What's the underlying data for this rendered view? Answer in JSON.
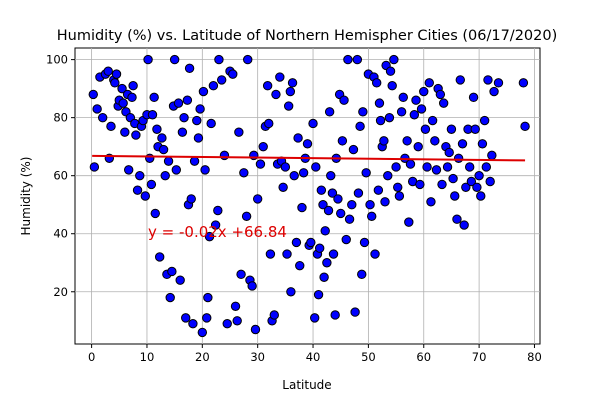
{
  "chart_data": {
    "type": "scatter",
    "title": "Humidity (%) vs. Latitude of Northern Hemispher Cities (06/17/2020)",
    "xlabel": "Latitude",
    "ylabel": "Humidity (%)",
    "xlim": [
      -3,
      81
    ],
    "ylim": [
      2,
      104
    ],
    "xticks": [
      0,
      10,
      20,
      30,
      40,
      50,
      60,
      70,
      80
    ],
    "yticks": [
      20,
      40,
      60,
      80,
      100
    ],
    "grid": true,
    "marker_color": "#0000ff",
    "marker_edge_color": "#000000",
    "regression": {
      "equation": "y = -0.02x +66.84",
      "slope": -0.02,
      "intercept": 66.84,
      "x_range": [
        0.1,
        78.3
      ],
      "color": "#dd0000"
    },
    "annotation_color": "#dd0000",
    "points": [
      [
        0.3,
        88
      ],
      [
        0.5,
        63
      ],
      [
        1,
        83
      ],
      [
        1.5,
        94
      ],
      [
        2,
        80
      ],
      [
        2.5,
        95
      ],
      [
        3,
        96
      ],
      [
        3.2,
        66
      ],
      [
        3.5,
        77
      ],
      [
        4,
        93
      ],
      [
        4.2,
        92
      ],
      [
        4.5,
        95
      ],
      [
        4.8,
        84
      ],
      [
        5,
        86
      ],
      [
        5.5,
        90
      ],
      [
        5.7,
        85
      ],
      [
        6,
        75
      ],
      [
        6.2,
        82
      ],
      [
        6.5,
        88
      ],
      [
        6.7,
        62
      ],
      [
        7,
        80
      ],
      [
        7.3,
        87
      ],
      [
        7.5,
        91
      ],
      [
        7.8,
        78
      ],
      [
        8,
        74
      ],
      [
        8.3,
        55
      ],
      [
        8.7,
        60
      ],
      [
        9,
        77
      ],
      [
        9.3,
        79
      ],
      [
        9.7,
        53
      ],
      [
        10,
        81
      ],
      [
        10.2,
        100
      ],
      [
        10.5,
        66
      ],
      [
        10.8,
        57
      ],
      [
        11,
        81
      ],
      [
        11.3,
        87
      ],
      [
        11.5,
        47
      ],
      [
        11.8,
        76
      ],
      [
        12,
        70
      ],
      [
        12.3,
        32
      ],
      [
        12.7,
        73
      ],
      [
        13,
        69
      ],
      [
        13.3,
        60
      ],
      [
        13.6,
        26
      ],
      [
        13.9,
        65
      ],
      [
        14.2,
        18
      ],
      [
        14.5,
        27
      ],
      [
        14.8,
        84
      ],
      [
        15,
        100
      ],
      [
        15.3,
        62
      ],
      [
        15.7,
        85
      ],
      [
        16,
        24
      ],
      [
        16.4,
        75
      ],
      [
        16.7,
        80
      ],
      [
        17,
        11
      ],
      [
        17.3,
        86
      ],
      [
        17.5,
        50
      ],
      [
        17.7,
        97
      ],
      [
        18,
        52
      ],
      [
        18.3,
        9
      ],
      [
        18.6,
        65
      ],
      [
        19,
        79
      ],
      [
        19.3,
        73
      ],
      [
        19.6,
        83
      ],
      [
        20,
        6
      ],
      [
        20.2,
        89
      ],
      [
        20.5,
        62
      ],
      [
        20.8,
        11
      ],
      [
        21,
        18
      ],
      [
        21.3,
        39
      ],
      [
        21.6,
        78
      ],
      [
        22,
        91
      ],
      [
        22.4,
        43
      ],
      [
        22.8,
        48
      ],
      [
        23,
        100
      ],
      [
        23.5,
        93
      ],
      [
        24,
        67
      ],
      [
        24.5,
        9
      ],
      [
        25,
        96
      ],
      [
        25.5,
        95
      ],
      [
        26,
        15
      ],
      [
        26.3,
        10
      ],
      [
        26.6,
        75
      ],
      [
        27,
        26
      ],
      [
        27.5,
        61
      ],
      [
        28,
        46
      ],
      [
        28.2,
        100
      ],
      [
        28.6,
        24
      ],
      [
        29,
        22
      ],
      [
        29.3,
        67
      ],
      [
        29.6,
        7
      ],
      [
        30,
        52
      ],
      [
        30.5,
        64
      ],
      [
        31,
        70
      ],
      [
        31.4,
        77
      ],
      [
        31.8,
        91
      ],
      [
        32,
        78
      ],
      [
        32.3,
        33
      ],
      [
        32.6,
        10
      ],
      [
        33,
        12
      ],
      [
        33.3,
        88
      ],
      [
        33.6,
        64
      ],
      [
        34,
        94
      ],
      [
        34.3,
        65
      ],
      [
        34.6,
        56
      ],
      [
        35,
        63
      ],
      [
        35.3,
        33
      ],
      [
        35.6,
        84
      ],
      [
        35.9,
        89
      ],
      [
        36,
        20
      ],
      [
        36.3,
        92
      ],
      [
        36.6,
        60
      ],
      [
        37,
        37
      ],
      [
        37.3,
        73
      ],
      [
        37.6,
        29
      ],
      [
        38,
        49
      ],
      [
        38.3,
        61
      ],
      [
        38.6,
        66
      ],
      [
        39,
        71
      ],
      [
        39.3,
        36
      ],
      [
        39.6,
        37
      ],
      [
        40,
        78
      ],
      [
        40.3,
        11
      ],
      [
        40.5,
        63
      ],
      [
        40.8,
        33
      ],
      [
        41,
        19
      ],
      [
        41.2,
        35
      ],
      [
        41.5,
        55
      ],
      [
        41.8,
        50
      ],
      [
        42,
        25
      ],
      [
        42.2,
        41
      ],
      [
        42.5,
        30
      ],
      [
        42.8,
        48
      ],
      [
        43,
        82
      ],
      [
        43.2,
        60
      ],
      [
        43.5,
        54
      ],
      [
        43.7,
        33
      ],
      [
        44,
        12
      ],
      [
        44.2,
        66
      ],
      [
        44.5,
        52
      ],
      [
        44.8,
        88
      ],
      [
        45,
        47
      ],
      [
        45.3,
        72
      ],
      [
        45.6,
        86
      ],
      [
        46,
        38
      ],
      [
        46.3,
        100
      ],
      [
        46.6,
        45
      ],
      [
        47,
        50
      ],
      [
        47.3,
        69
      ],
      [
        47.6,
        13
      ],
      [
        48,
        100
      ],
      [
        48.2,
        54
      ],
      [
        48.5,
        77
      ],
      [
        48.8,
        26
      ],
      [
        49,
        82
      ],
      [
        49.3,
        37
      ],
      [
        49.6,
        61
      ],
      [
        50,
        95
      ],
      [
        50.3,
        50
      ],
      [
        50.6,
        46
      ],
      [
        51,
        94
      ],
      [
        51.2,
        33
      ],
      [
        51.5,
        92
      ],
      [
        51.8,
        55
      ],
      [
        52,
        85
      ],
      [
        52.2,
        79
      ],
      [
        52.5,
        70
      ],
      [
        52.8,
        72
      ],
      [
        53,
        51
      ],
      [
        53.2,
        98
      ],
      [
        53.5,
        60
      ],
      [
        53.8,
        80
      ],
      [
        54,
        96
      ],
      [
        54.3,
        91
      ],
      [
        54.6,
        100
      ],
      [
        55,
        63
      ],
      [
        55.3,
        56
      ],
      [
        55.6,
        53
      ],
      [
        56,
        82
      ],
      [
        56.3,
        87
      ],
      [
        56.6,
        66
      ],
      [
        57,
        72
      ],
      [
        57.3,
        44
      ],
      [
        57.6,
        64
      ],
      [
        58,
        58
      ],
      [
        58.3,
        81
      ],
      [
        58.6,
        86
      ],
      [
        59,
        70
      ],
      [
        59.3,
        57
      ],
      [
        59.6,
        83
      ],
      [
        60,
        89
      ],
      [
        60.3,
        76
      ],
      [
        60.6,
        63
      ],
      [
        61,
        92
      ],
      [
        61.3,
        51
      ],
      [
        61.6,
        79
      ],
      [
        62,
        72
      ],
      [
        62.3,
        62
      ],
      [
        62.6,
        90
      ],
      [
        63,
        88
      ],
      [
        63.3,
        57
      ],
      [
        63.6,
        85
      ],
      [
        64,
        70
      ],
      [
        64.3,
        63
      ],
      [
        64.6,
        68
      ],
      [
        65,
        76
      ],
      [
        65.3,
        59
      ],
      [
        65.6,
        53
      ],
      [
        66,
        45
      ],
      [
        66.3,
        66
      ],
      [
        66.6,
        93
      ],
      [
        67,
        71
      ],
      [
        67.3,
        43
      ],
      [
        67.6,
        56
      ],
      [
        68,
        76
      ],
      [
        68.3,
        63
      ],
      [
        68.6,
        58
      ],
      [
        69,
        87
      ],
      [
        69.3,
        76
      ],
      [
        69.6,
        56
      ],
      [
        70,
        60
      ],
      [
        70.3,
        53
      ],
      [
        70.6,
        71
      ],
      [
        71,
        79
      ],
      [
        71.3,
        63
      ],
      [
        71.6,
        93
      ],
      [
        72,
        58
      ],
      [
        72.3,
        67
      ],
      [
        72.7,
        89
      ],
      [
        73.5,
        92
      ],
      [
        78,
        92
      ],
      [
        78.3,
        77
      ]
    ]
  }
}
